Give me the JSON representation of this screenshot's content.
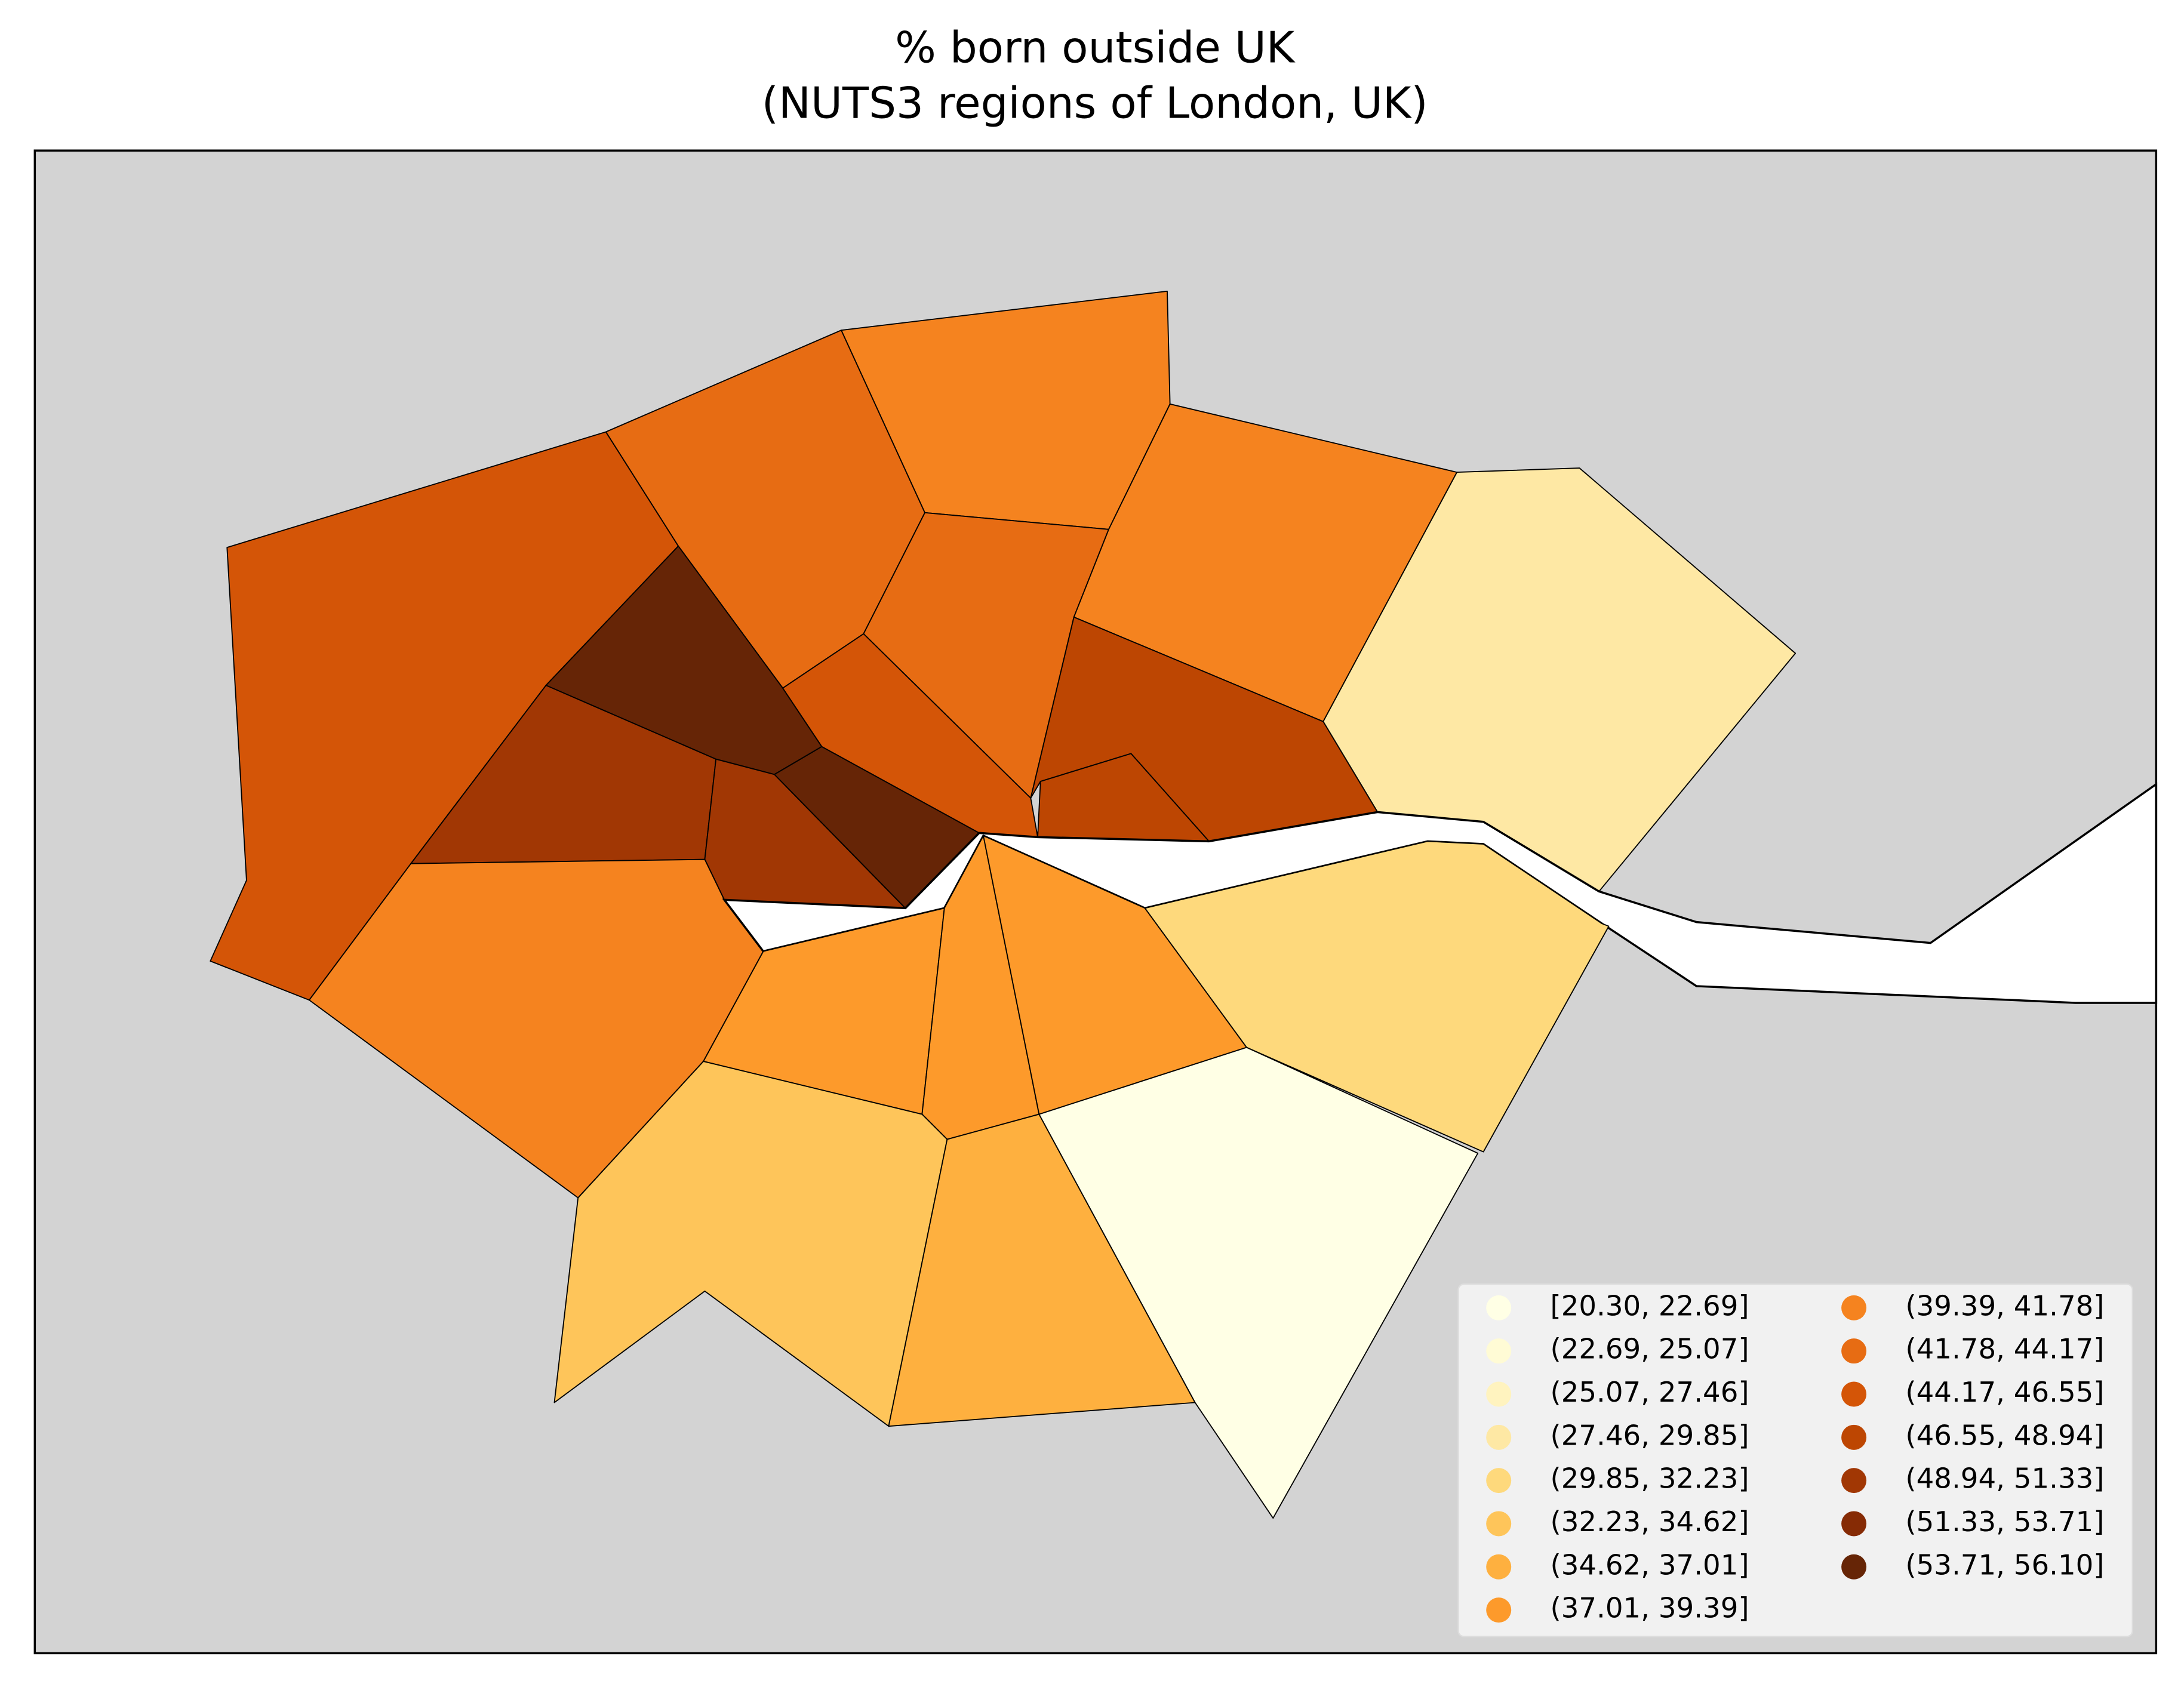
{
  "chart_data": {
    "type": "choropleth",
    "title": "% born outside UK",
    "subtitle": "(NUTS3 regions of London, UK)",
    "legend": [
      {
        "label": "[20.30, 22.69]",
        "color": "#ffffe5"
      },
      {
        "label": "(22.69, 25.07]",
        "color": "#fffbd5"
      },
      {
        "label": "(25.07, 27.46]",
        "color": "#fff3bf"
      },
      {
        "label": "(27.46, 29.85]",
        "color": "#fee8a4"
      },
      {
        "label": "(29.85, 32.23]",
        "color": "#fed97c"
      },
      {
        "label": "(32.23, 34.62]",
        "color": "#fec55a"
      },
      {
        "label": "(34.62, 37.01]",
        "color": "#feb03f"
      },
      {
        "label": "(37.01, 39.39]",
        "color": "#fd9a2b"
      },
      {
        "label": "(39.39, 41.78]",
        "color": "#f5831f"
      },
      {
        "label": "(41.78, 44.17]",
        "color": "#e76c13"
      },
      {
        "label": "(44.17, 46.55]",
        "color": "#d45507"
      },
      {
        "label": "(46.55, 48.94]",
        "color": "#bd4602"
      },
      {
        "label": "(48.94, 51.33]",
        "color": "#a13704"
      },
      {
        "label": "(51.33, 53.71]",
        "color": "#862b05"
      },
      {
        "label": "(53.71, 56.10]",
        "color": "#662506"
      }
    ]
  }
}
